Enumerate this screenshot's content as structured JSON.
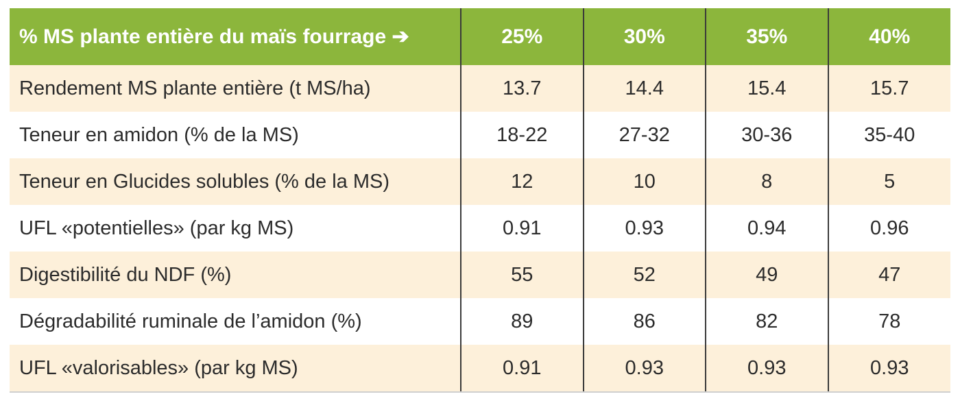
{
  "table": {
    "header": [
      "% MS plante entière du maïs fourrage ➔",
      "25%",
      "30%",
      "35%",
      "40%"
    ],
    "rows": [
      [
        "Rendement MS plante entière (t MS/ha)",
        "13.7",
        "14.4",
        "15.4",
        "15.7"
      ],
      [
        "Teneur en amidon (% de la MS)",
        "18-22",
        "27-32",
        "30-36",
        "35-40"
      ],
      [
        "Teneur en Glucides solubles (% de la MS)",
        "12",
        "10",
        "8",
        "5"
      ],
      [
        "UFL «potentielles» (par kg MS)",
        "0.91",
        "0.93",
        "0.94",
        "0.96"
      ],
      [
        "Digestibilité du NDF (%)",
        "55",
        "52",
        "49",
        "47"
      ],
      [
        "Dégradabilité ruminale de l’amidon (%)",
        "89",
        "86",
        "82",
        "78"
      ],
      [
        "UFL «valorisables» (par kg MS)",
        "0.91",
        "0.93",
        "0.93",
        "0.93"
      ]
    ]
  }
}
